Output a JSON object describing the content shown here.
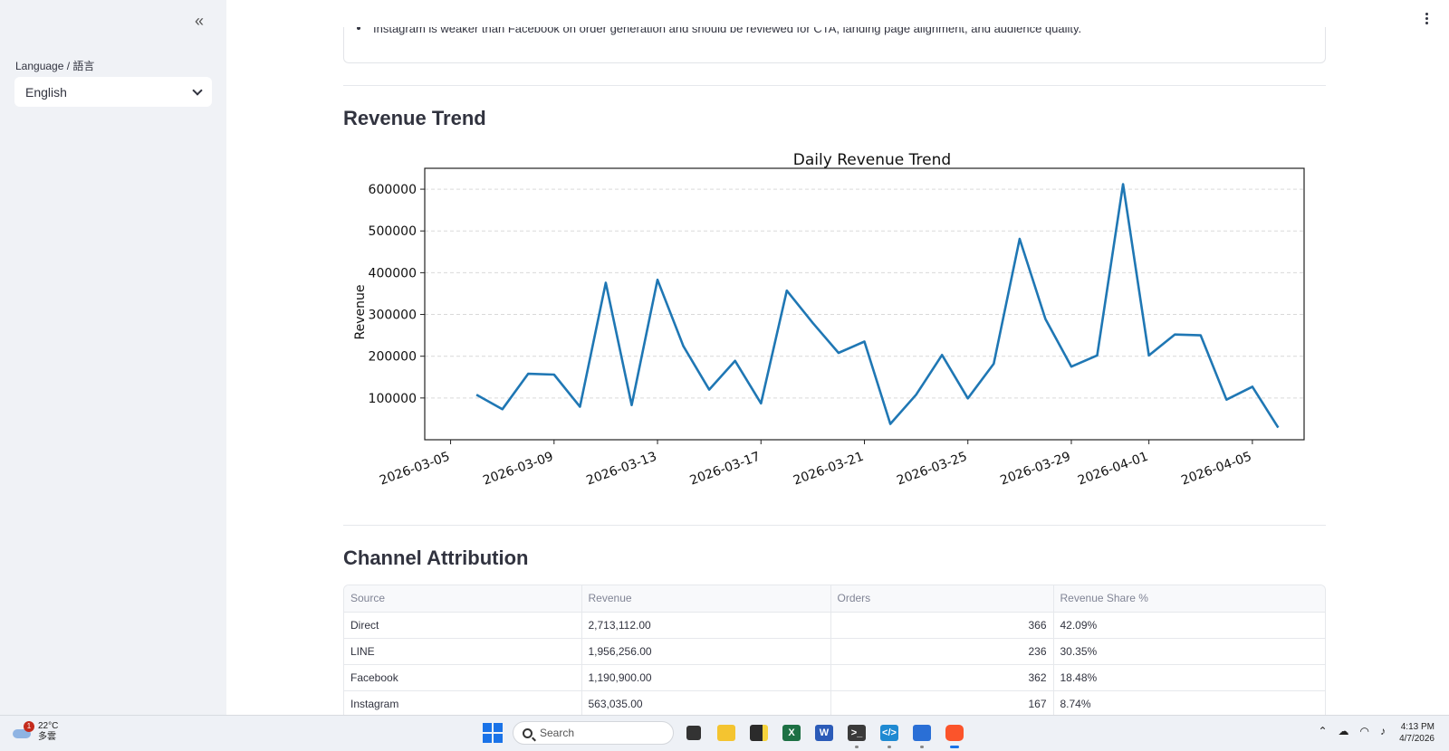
{
  "sidebar": {
    "collapse_glyph": "«",
    "language_label": "Language / 語言",
    "language_value": "English"
  },
  "main": {
    "insight_text": "Instagram is weaker than Facebook on order generation and should be reviewed for CTA, landing page alignment, and audience quality.",
    "revenue_section_title": "Revenue Trend",
    "channel_section_title": "Channel Attribution"
  },
  "chart_data": {
    "type": "line",
    "title": "Daily Revenue Trend",
    "xlabel": "",
    "ylabel": "Revenue",
    "x": [
      "2026-03-06",
      "2026-03-07",
      "2026-03-08",
      "2026-03-09",
      "2026-03-10",
      "2026-03-11",
      "2026-03-12",
      "2026-03-13",
      "2026-03-14",
      "2026-03-15",
      "2026-03-16",
      "2026-03-17",
      "2026-03-18",
      "2026-03-19",
      "2026-03-20",
      "2026-03-21",
      "2026-03-22",
      "2026-03-23",
      "2026-03-24",
      "2026-03-25",
      "2026-03-26",
      "2026-03-27",
      "2026-03-28",
      "2026-03-29",
      "2026-03-30",
      "2026-03-31",
      "2026-04-01",
      "2026-04-02",
      "2026-04-03",
      "2026-04-04",
      "2026-04-05",
      "2026-04-06"
    ],
    "values": [
      108000,
      73000,
      158000,
      156000,
      79000,
      376000,
      83000,
      383000,
      224000,
      120000,
      189000,
      87000,
      357000,
      280000,
      208000,
      235000,
      38000,
      108000,
      203000,
      99000,
      182000,
      481000,
      289000,
      175000,
      202000,
      612000,
      202000,
      252000,
      250000,
      96000,
      127000,
      29000
    ],
    "xticks": [
      "2026-03-05",
      "2026-03-09",
      "2026-03-13",
      "2026-03-17",
      "2026-03-21",
      "2026-03-25",
      "2026-03-29",
      "2026-04-01",
      "2026-04-05"
    ],
    "yticks": [
      100000,
      200000,
      300000,
      400000,
      500000,
      600000
    ],
    "ylim": [
      0,
      650000
    ],
    "grid": "horizontal dashed",
    "color": "#1f77b4"
  },
  "table": {
    "headers": [
      "Source",
      "Revenue",
      "Orders",
      "Revenue Share %"
    ],
    "rows": [
      [
        "Direct",
        "2,713,112.00",
        "366",
        "42.09%"
      ],
      [
        "LINE",
        "1,956,256.00",
        "236",
        "30.35%"
      ],
      [
        "Facebook",
        "1,190,900.00",
        "362",
        "18.48%"
      ],
      [
        "Instagram",
        "563,035.00",
        "167",
        "8.74%"
      ]
    ]
  },
  "taskbar": {
    "weather_temp": "22°C",
    "weather_desc": "多雲",
    "weather_badge": "1",
    "search_placeholder": "Search",
    "time": "4:13 PM",
    "date": "4/7/2026"
  }
}
